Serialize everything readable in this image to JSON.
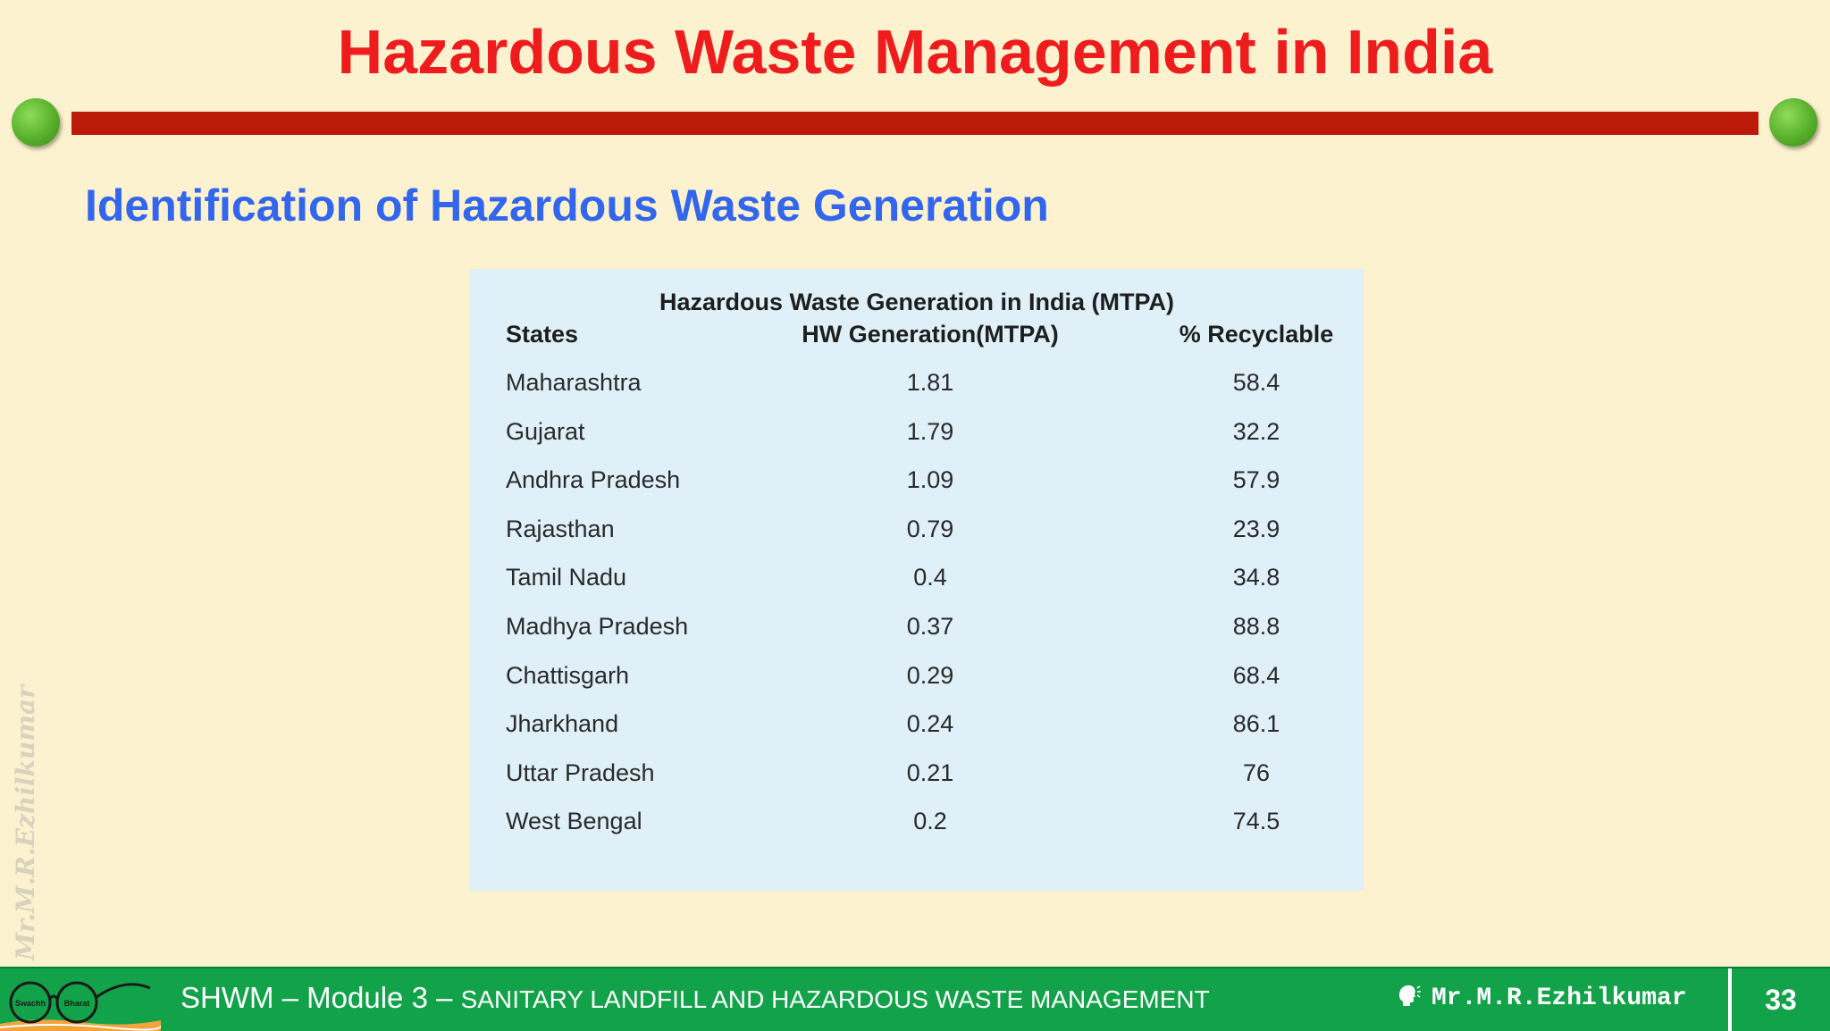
{
  "slide": {
    "title": "Hazardous Waste Management in India",
    "subtitle": "Identification of Hazardous Waste Generation",
    "watermark": "Mr.M.R.Ezhilkumar"
  },
  "table": {
    "title": "Hazardous Waste Generation in India (MTPA)",
    "headers": [
      "States",
      "HW Generation(MTPA)",
      "% Recyclable"
    ],
    "rows": [
      [
        "Maharashtra",
        "1.81",
        "58.4"
      ],
      [
        "Gujarat",
        "1.79",
        "32.2"
      ],
      [
        "Andhra Pradesh",
        "1.09",
        "57.9"
      ],
      [
        "Rajasthan",
        "0.79",
        "23.9"
      ],
      [
        "Tamil Nadu",
        "0.4",
        "34.8"
      ],
      [
        "Madhya Pradesh",
        "0.37",
        "88.8"
      ],
      [
        "Chattisgarh",
        "0.29",
        "68.4"
      ],
      [
        "Jharkhand",
        "0.24",
        "86.1"
      ],
      [
        "Uttar Pradesh",
        "0.21",
        "76"
      ],
      [
        "West Bengal",
        "0.2",
        "74.5"
      ]
    ]
  },
  "footer": {
    "module": "SHWM – Module 3 – ",
    "module_name": "SANITARY LANDFILL AND HAZARDOUS WASTE MANAGEMENT",
    "author": "Mr.M.R.Ezhilkumar",
    "page_number": "33",
    "logo_text_left": "Swachh",
    "logo_text_right": "Bharat"
  },
  "colors": {
    "background": "#fdf2cf",
    "title": "#ee1c1c",
    "rule": "#bb1a0b",
    "subtitle": "#3366ee",
    "table_bg": "#dff0f8",
    "footer": "#12a24a"
  },
  "icons": {
    "logo": "swachh-bharat-glasses-icon",
    "author": "speaking-head-icon",
    "bullets": "green-ball-icon"
  }
}
